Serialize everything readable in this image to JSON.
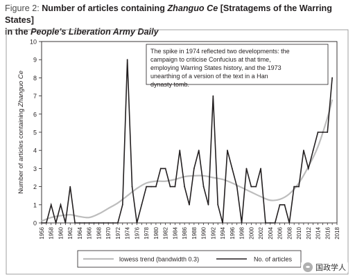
{
  "figure": {
    "label": "Figure 2:",
    "title_part1": "Number of articles containing ",
    "title_italic1": "Zhanguo Ce",
    "title_part2": " [Stratagems of the Warring States]",
    "title_line2_part1": "in the ",
    "title_line2_italic": "People's Liberation Army Daily"
  },
  "chart_data": {
    "type": "line",
    "ylabel": "Number of articles containing Zhanguo Ce",
    "xlabel": "",
    "ylim": [
      0,
      10
    ],
    "xlim": [
      1956,
      2018
    ],
    "yticks": [
      "0",
      "1",
      "2",
      "3",
      "4",
      "5",
      "6",
      "7",
      "8",
      "9",
      "10"
    ],
    "xticks": [
      "1956",
      "1958",
      "1960",
      "1962",
      "1964",
      "1966",
      "1968",
      "1970",
      "1972",
      "1974",
      "1976",
      "1978",
      "1980",
      "1982",
      "1984",
      "1986",
      "1988",
      "1990",
      "1992",
      "1994",
      "1996",
      "1998",
      "2000",
      "2002",
      "2004",
      "2006",
      "2008",
      "2010",
      "2012",
      "2014",
      "2016",
      "2018"
    ],
    "series": [
      {
        "name": "No. of articles",
        "color": "#231f20",
        "x": [
          1956,
          1957,
          1958,
          1959,
          1960,
          1961,
          1962,
          1963,
          1964,
          1965,
          1966,
          1967,
          1968,
          1969,
          1970,
          1971,
          1972,
          1973,
          1974,
          1975,
          1976,
          1977,
          1978,
          1979,
          1980,
          1981,
          1982,
          1983,
          1984,
          1985,
          1986,
          1987,
          1988,
          1989,
          1990,
          1991,
          1992,
          1993,
          1994,
          1995,
          1996,
          1997,
          1998,
          1999,
          2000,
          2001,
          2002,
          2003,
          2004,
          2005,
          2006,
          2007,
          2008,
          2009,
          2010,
          2011,
          2012,
          2013,
          2014,
          2015,
          2016,
          2017
        ],
        "values": [
          0,
          0,
          1,
          0,
          1,
          0,
          2,
          0,
          0,
          0,
          0,
          0,
          0,
          0,
          0,
          0,
          0,
          1,
          9,
          2,
          0,
          1,
          2,
          2,
          2,
          3,
          3,
          2,
          2,
          4,
          2,
          1,
          3,
          4,
          2,
          1,
          7,
          1,
          0,
          4,
          3,
          2,
          0,
          3,
          2,
          2,
          3,
          0,
          0,
          0,
          1,
          1,
          0,
          2,
          2,
          4,
          3,
          4,
          5,
          5,
          5,
          8
        ]
      },
      {
        "name": "lowess trend (bandwidth 0.3)",
        "color": "#bdbdbd",
        "x": [
          1956,
          1958,
          1960,
          1962,
          1964,
          1966,
          1968,
          1970,
          1972,
          1974,
          1976,
          1978,
          1980,
          1982,
          1984,
          1986,
          1988,
          1990,
          1992,
          1994,
          1996,
          1998,
          2000,
          2002,
          2004,
          2006,
          2008,
          2010,
          2012,
          2014,
          2016,
          2017
        ],
        "values": [
          0.1,
          0.3,
          0.4,
          0.45,
          0.35,
          0.3,
          0.5,
          0.8,
          1.1,
          1.5,
          1.9,
          2.2,
          2.3,
          2.3,
          2.4,
          2.55,
          2.6,
          2.6,
          2.5,
          2.4,
          2.2,
          1.95,
          1.7,
          1.45,
          1.25,
          1.3,
          1.6,
          2.2,
          3.1,
          4.2,
          5.8,
          6.8
        ]
      }
    ],
    "annotation": "The spike in 1974 reflected two developments: the campaign to criticise Confucius at that time, employing Warring States history, and the 1973 unearthing of a version of the text in a Han dynasty tomb.",
    "legend_position": "bottom",
    "grid": false
  },
  "watermark": {
    "icon": "wechat-icon",
    "text": "国政学人"
  }
}
